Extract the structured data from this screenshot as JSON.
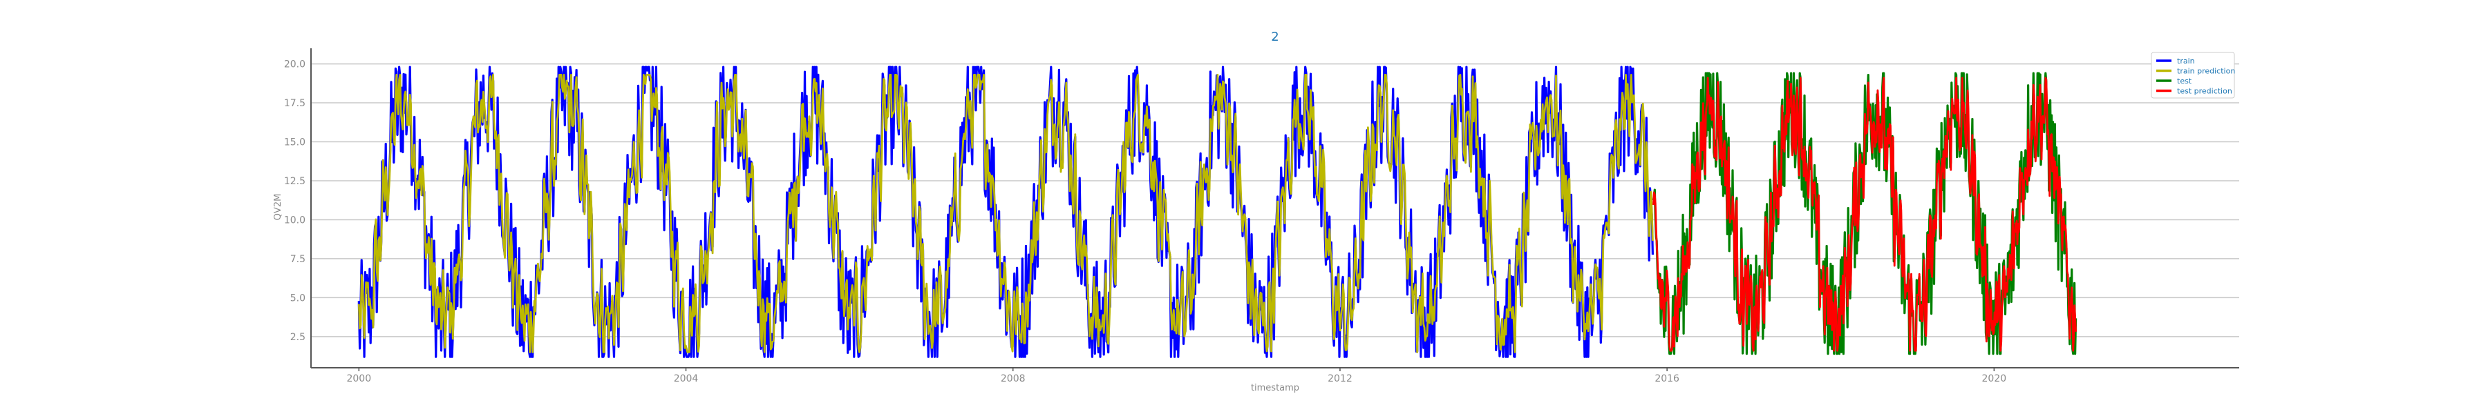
{
  "chart_data": {
    "type": "line",
    "title": "2",
    "xlabel": "timestamp",
    "ylabel": "QV2M",
    "xlim": [
      "1999-06-01",
      "2022-12-31"
    ],
    "ylim": [
      0.5,
      21.0
    ],
    "x_ticks": [
      "2000",
      "2004",
      "2008",
      "2012",
      "2016",
      "2020"
    ],
    "y_ticks": [
      "2.5",
      "5.0",
      "7.5",
      "10.0",
      "12.5",
      "15.0",
      "17.5",
      "20.0"
    ],
    "grid": "horizontal",
    "legend": "top-right",
    "series": [
      {
        "name": "train",
        "color": "#0000ff",
        "x_range": [
          "2000-01-01",
          "2015-10-31"
        ],
        "y_min": 1.2,
        "y_max": 19.8
      },
      {
        "name": "train prediction",
        "color": "#bcb800",
        "x_range": [
          "2000-01-01",
          "2015-10-31"
        ],
        "y_min": 1.5,
        "y_max": 19.3
      },
      {
        "name": "test",
        "color": "#008000",
        "x_range": [
          "2015-11-01",
          "2020-12-31"
        ],
        "y_min": 1.4,
        "y_max": 19.4
      },
      {
        "name": "test prediction",
        "color": "#ff0000",
        "x_range": [
          "2015-11-01",
          "2020-12-31"
        ],
        "y_min": 1.6,
        "y_max": 19.1
      }
    ],
    "title_color": "#1f77b4",
    "legend_text_color": "#1f77b4"
  }
}
